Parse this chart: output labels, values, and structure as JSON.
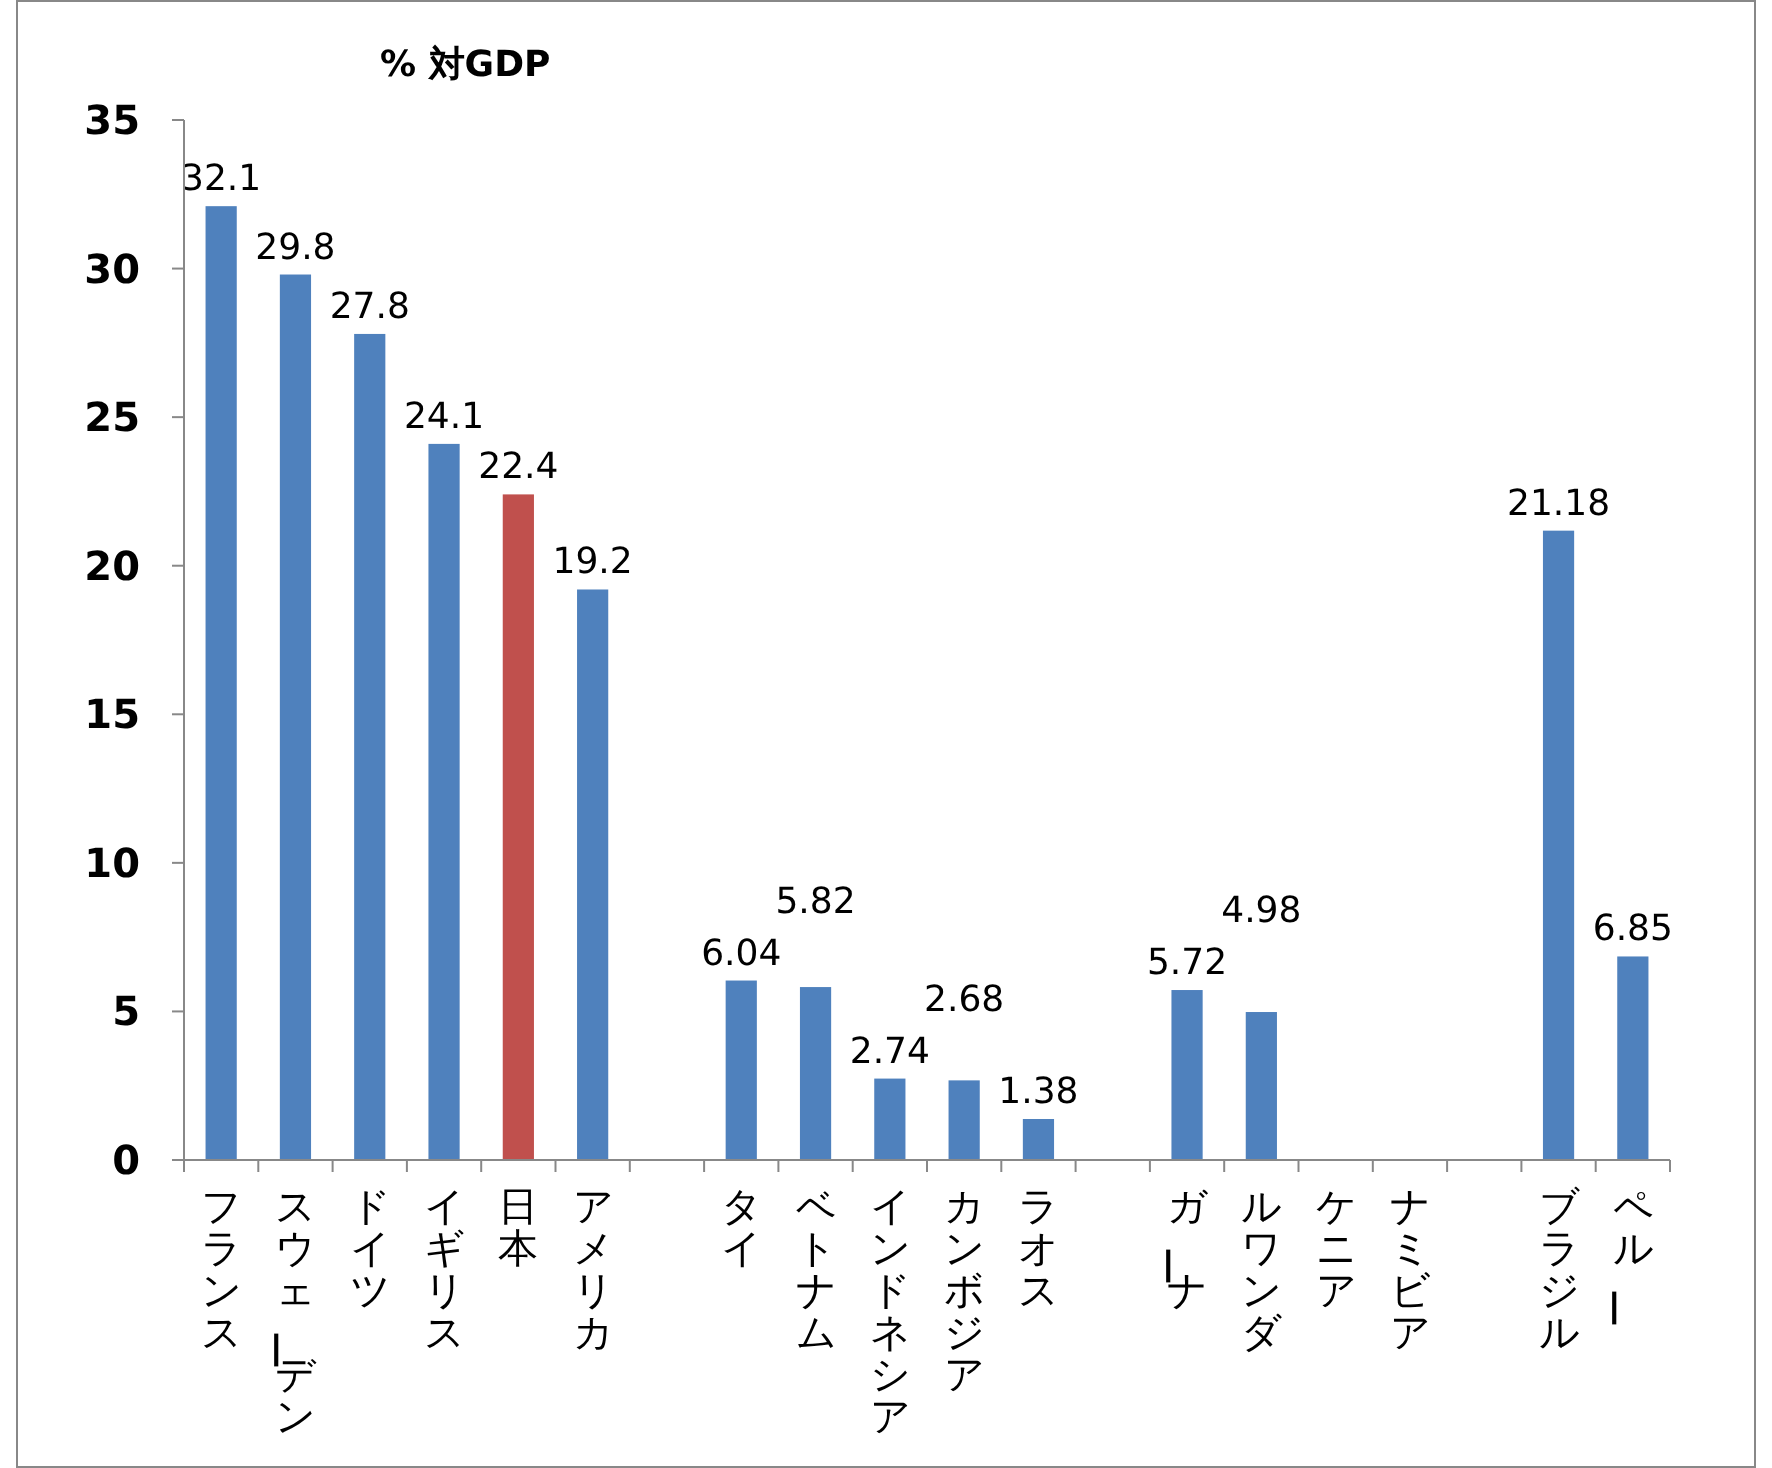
{
  "chart_data": {
    "type": "bar",
    "title": "% 対GDP",
    "categories": [
      "フランス",
      "スウェーデン",
      "ドイツ",
      "イギリス",
      "日本",
      "アメリカ",
      null,
      "タイ",
      "ベトナム",
      "インドネシア",
      "カンボジア",
      "ラオス",
      null,
      "ガーナ",
      "ルワンダ",
      "ケニア",
      "ナミビア",
      null,
      "ブラジル",
      "ペルー"
    ],
    "values": [
      32.1,
      29.8,
      27.8,
      24.1,
      22.4,
      19.2,
      null,
      6.04,
      5.82,
      2.74,
      2.68,
      1.38,
      null,
      5.72,
      4.98,
      null,
      null,
      null,
      21.18,
      6.85
    ],
    "colors": [
      "#4f81bd",
      "#4f81bd",
      "#4f81bd",
      "#4f81bd",
      "#c0504d",
      "#4f81bd",
      null,
      "#4f81bd",
      "#4f81bd",
      "#4f81bd",
      "#4f81bd",
      "#4f81bd",
      null,
      "#4f81bd",
      "#4f81bd",
      null,
      null,
      null,
      "#4f81bd",
      "#4f81bd"
    ],
    "ylim": [
      0,
      35
    ],
    "yticks": [
      0,
      5,
      10,
      15,
      20,
      25,
      30,
      35
    ],
    "data_labels": true
  }
}
